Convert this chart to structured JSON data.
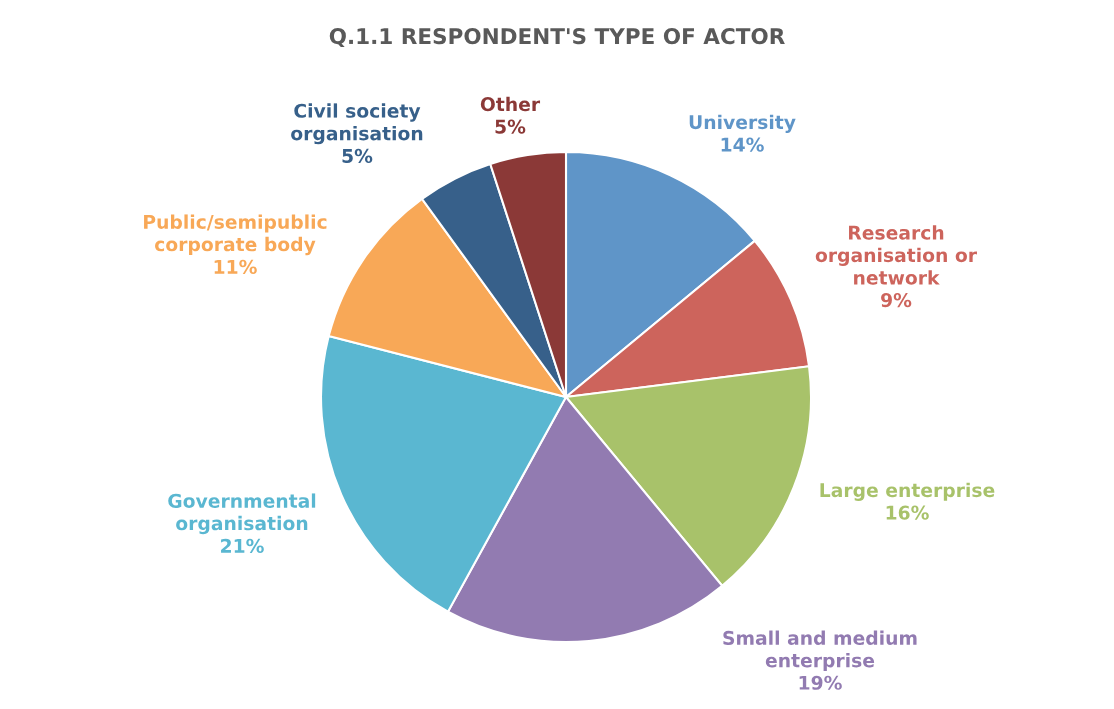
{
  "chart_data": {
    "type": "pie",
    "title": "Q.1.1 RESPONDENT'S TYPE OF ACTOR",
    "categories": [
      "University",
      "Research organisation or network",
      "Large enterprise",
      "Small and medium enterprise",
      "Governmental organisation",
      "Public/semipublic corporate body",
      "Civil society organisation",
      "Other"
    ],
    "values": [
      14,
      9,
      16,
      19,
      21,
      11,
      5,
      5
    ],
    "colors": [
      "#5f95c8",
      "#cd645c",
      "#a8c26a",
      "#927bb1",
      "#5ab7d1",
      "#f8a857",
      "#37608a",
      "#8b3937"
    ],
    "value_labels": [
      "14%",
      "9%",
      "16%",
      "19%",
      "21%",
      "11%",
      "5%",
      "5%"
    ],
    "legend": false
  }
}
